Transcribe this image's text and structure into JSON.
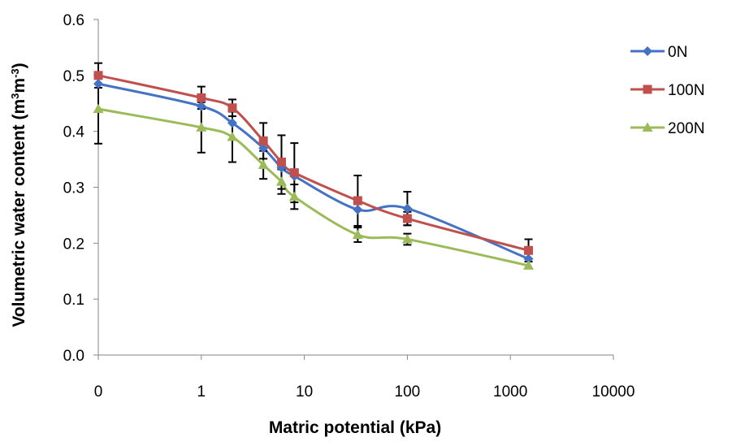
{
  "chart_data": {
    "type": "line",
    "x_scale": "log-like (first tick 0)",
    "x_ticks": [
      "0",
      "1",
      "10",
      "100",
      "1000",
      "10000"
    ],
    "y_ticks": [
      "0.0",
      "0.1",
      "0.2",
      "0.3",
      "0.4",
      "0.5",
      "0.6"
    ],
    "ylim": [
      0,
      0.6
    ],
    "xlabel": "Matric potential (kPa)",
    "ylabel_main": "Volumetric water content (m",
    "ylabel_sup1": "3",
    "ylabel_mid": "m",
    "ylabel_sup2": "-3",
    "ylabel_end": ")",
    "grid": false,
    "legend_position": "right",
    "x": [
      0,
      1,
      2,
      4,
      6,
      8,
      33,
      100,
      1500
    ],
    "series": [
      {
        "name": "0N",
        "color": "#4472C4",
        "marker": "diamond",
        "values": [
          0.485,
          0.445,
          0.415,
          0.37,
          0.335,
          0.32,
          0.26,
          0.262,
          0.172
        ],
        "errors": [
          0,
          0,
          0,
          0,
          0,
          0,
          0,
          0.03,
          0
        ]
      },
      {
        "name": "100N",
        "color": "#C0504D",
        "marker": "square",
        "values": [
          0.5,
          0.46,
          0.442,
          0.383,
          0.345,
          0.326,
          0.276,
          0.244,
          0.187
        ],
        "errors": [
          0.022,
          0.02,
          0.015,
          0.032,
          0.048,
          0.053,
          0.045,
          0.012,
          0.02
        ]
      },
      {
        "name": "200N",
        "color": "#9BBB59",
        "marker": "triangle",
        "values": [
          0.44,
          0.407,
          0.39,
          0.34,
          0.31,
          0.283,
          0.215,
          0.207,
          0.16
        ],
        "errors": [
          0.062,
          0.045,
          0.045,
          0.025,
          0.022,
          0.022,
          0.013,
          0.01,
          0
        ]
      }
    ]
  }
}
